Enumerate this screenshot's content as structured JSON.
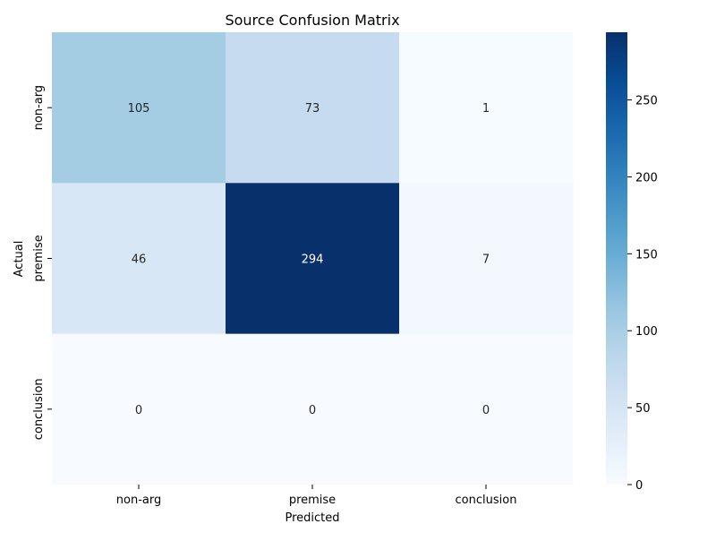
{
  "chart_data": {
    "type": "heatmap",
    "title": "Source Confusion Matrix",
    "xlabel": "Predicted",
    "ylabel": "Actual",
    "x_categories": [
      "non-arg",
      "premise",
      "conclusion"
    ],
    "y_categories": [
      "non-arg",
      "premise",
      "conclusion"
    ],
    "values": [
      [
        105,
        73,
        1
      ],
      [
        46,
        294,
        7
      ],
      [
        0,
        0,
        0
      ]
    ],
    "colormap": "Blues",
    "colorbar": {
      "range": [
        0,
        294
      ],
      "ticks": [
        0,
        50,
        100,
        150,
        200,
        250
      ]
    }
  }
}
